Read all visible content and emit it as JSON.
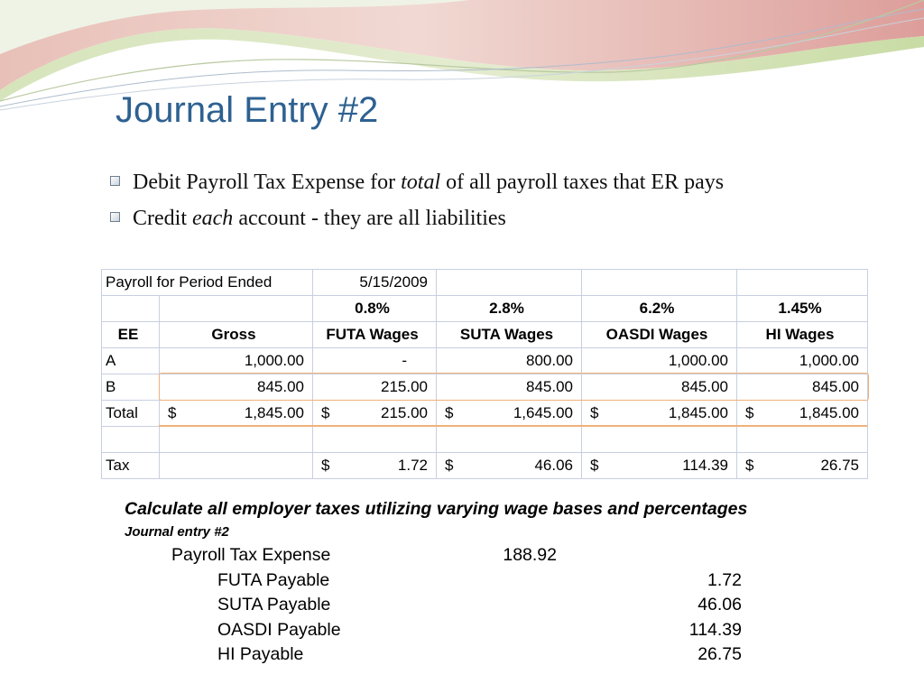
{
  "slide": {
    "title": "Journal Entry #2",
    "bullets": [
      {
        "pre": "Debit Payroll Tax Expense for ",
        "em": "total",
        "post": " of all payroll taxes that ER pays"
      },
      {
        "pre": "Credit ",
        "em": "each",
        "post": " account - they are all liabilities"
      }
    ],
    "colors": {
      "title": "#2e6191",
      "highlight": "#f1b27a",
      "grid": "#c7cfe0",
      "deco_green": "#c2d7a0",
      "deco_pink": "#dd9e9a"
    }
  },
  "sheet": {
    "period_label": "Payroll for Period Ended",
    "period_date": "5/15/2009",
    "rates": [
      "0.8%",
      "2.8%",
      "6.2%",
      "1.45%"
    ],
    "headers": [
      "EE",
      "Gross",
      "FUTA Wages",
      "SUTA Wages",
      "OASDI Wages",
      "HI Wages"
    ],
    "rows": [
      {
        "ee": "A",
        "gross": "1,000.00",
        "futa": "-",
        "suta": "800.00",
        "oasdi": "1,000.00",
        "hi": "1,000.00"
      },
      {
        "ee": "B",
        "gross": "845.00",
        "futa": "215.00",
        "suta": "845.00",
        "oasdi": "845.00",
        "hi": "845.00"
      }
    ],
    "total": {
      "label": "Total",
      "sign": "$",
      "gross": "1,845.00",
      "futa": "215.00",
      "suta": "1,645.00",
      "oasdi": "1,845.00",
      "hi": "1,845.00"
    },
    "tax": {
      "label": "Tax",
      "sign": "$",
      "futa": "1.72",
      "suta": "46.06",
      "oasdi": "114.39",
      "hi": "26.75"
    }
  },
  "calc": {
    "heading": "Calculate all employer taxes utilizing varying wage bases and percentages",
    "subheading": "Journal entry #2",
    "debit": {
      "account": "Payroll Tax Expense",
      "amount": "188.92"
    },
    "credits": [
      {
        "account": "FUTA Payable",
        "amount": "1.72"
      },
      {
        "account": "SUTA Payable",
        "amount": "46.06"
      },
      {
        "account": "OASDI Payable",
        "amount": "114.39"
      },
      {
        "account": "HI Payable",
        "amount": "26.75"
      }
    ]
  }
}
